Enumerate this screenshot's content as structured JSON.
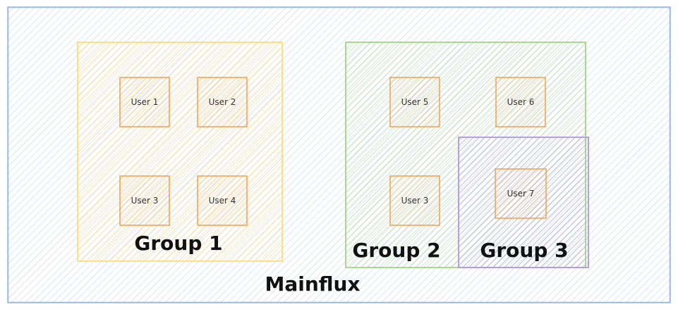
{
  "diagram": {
    "title": "Mainflux",
    "colors": {
      "container": "#7ea6e0",
      "group1": "#ffd966",
      "group2": "#97d077",
      "group3": "#b594e6",
      "user": "#f0a050"
    },
    "groups": [
      {
        "id": "group1",
        "label": "Group 1"
      },
      {
        "id": "group2",
        "label": "Group 2"
      },
      {
        "id": "group3",
        "label": "Group 3"
      }
    ],
    "users": [
      {
        "label": "User 1",
        "group": "group1"
      },
      {
        "label": "User 2",
        "group": "group1"
      },
      {
        "label": "User 3",
        "group": "group1"
      },
      {
        "label": "User 4",
        "group": "group1"
      },
      {
        "label": "User 5",
        "group": "group2"
      },
      {
        "label": "User 6",
        "group": "group2"
      },
      {
        "label": "User 3",
        "group": "group2"
      },
      {
        "label": "User 7",
        "group": "group3"
      }
    ]
  }
}
